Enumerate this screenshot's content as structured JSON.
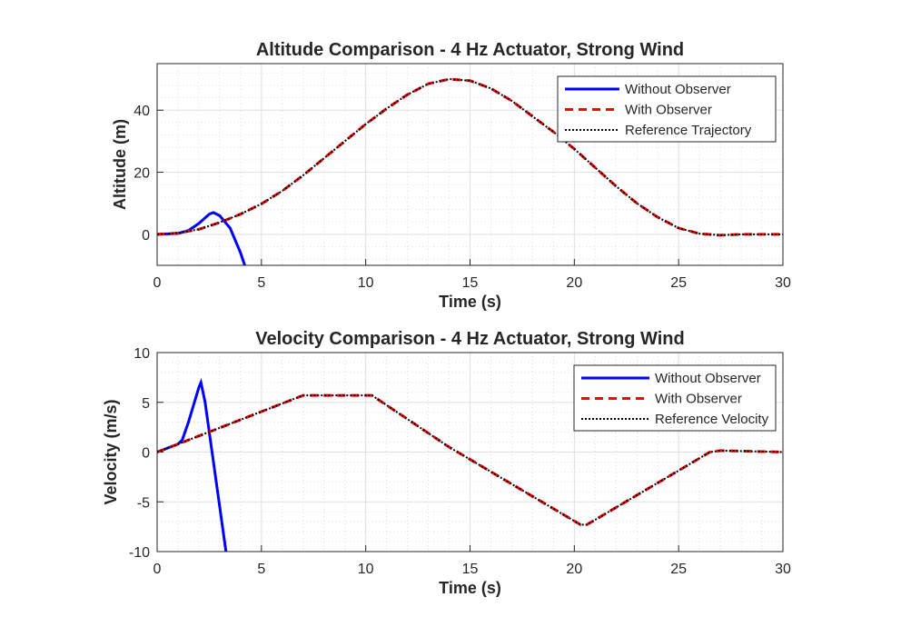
{
  "chart_data": [
    {
      "type": "line",
      "title": "Altitude Comparison - 4 Hz Actuator, Strong Wind",
      "xlabel": "Time (s)",
      "ylabel": "Altitude (m)",
      "xlim": [
        0,
        30
      ],
      "ylim": [
        -10,
        55
      ],
      "xticks": [
        0,
        5,
        10,
        15,
        20,
        25,
        30
      ],
      "yticks": [
        0,
        20,
        40
      ],
      "grid": true,
      "legend_placement": "top-right",
      "series": [
        {
          "name": "Without Observer",
          "color": "#0000ff",
          "style": "solid",
          "x": [
            0,
            1,
            1.5,
            2,
            2.5,
            2.7,
            3,
            3.5,
            4,
            4.2
          ],
          "y": [
            0,
            0.3,
            1.2,
            3.5,
            6.5,
            7,
            6,
            2,
            -6,
            -10
          ]
        },
        {
          "name": "With Observer",
          "color": "#ff0000",
          "style": "dashed",
          "x": [
            0,
            1,
            2,
            3,
            4,
            5,
            6,
            7,
            8,
            9,
            10,
            11,
            12,
            13,
            14,
            15,
            16,
            17,
            18,
            19,
            20,
            21,
            22,
            23,
            24,
            25,
            26,
            27,
            28,
            30
          ],
          "y": [
            0,
            0.4,
            1.6,
            3.8,
            6.5,
            9.8,
            14,
            19,
            24.5,
            30,
            35.5,
            40.5,
            45,
            48.5,
            50,
            49.5,
            47,
            43,
            38,
            33,
            27.5,
            21.5,
            15.5,
            10,
            5.5,
            2,
            0.2,
            -0.3,
            0,
            0
          ]
        },
        {
          "name": "Reference Trajectory",
          "color": "#000000",
          "style": "dotted",
          "x": [
            0,
            1,
            2,
            3,
            4,
            5,
            6,
            7,
            8,
            9,
            10,
            11,
            12,
            13,
            14,
            15,
            16,
            17,
            18,
            19,
            20,
            21,
            22,
            23,
            24,
            25,
            26,
            27,
            28,
            30
          ],
          "y": [
            0,
            0.4,
            1.6,
            3.8,
            6.5,
            9.8,
            14,
            19,
            24.5,
            30,
            35.5,
            40.5,
            45,
            48.5,
            50,
            49.5,
            47,
            43,
            38,
            33,
            27.5,
            21.5,
            15.5,
            10,
            5.5,
            2,
            0.2,
            -0.3,
            0,
            0
          ]
        }
      ]
    },
    {
      "type": "line",
      "title": "Velocity Comparison - 4 Hz Actuator, Strong Wind",
      "xlabel": "Time (s)",
      "ylabel": "Velocity (m/s)",
      "xlim": [
        0,
        30
      ],
      "ylim": [
        -10,
        10
      ],
      "xticks": [
        0,
        5,
        10,
        15,
        20,
        25,
        30
      ],
      "yticks": [
        -10,
        -5,
        0,
        5,
        10
      ],
      "grid": true,
      "legend_placement": "top-right",
      "series": [
        {
          "name": "Without Observer",
          "color": "#0000ff",
          "style": "solid",
          "x": [
            0,
            1,
            1.2,
            1.5,
            2,
            2.1,
            2.3,
            2.7,
            3,
            3.3
          ],
          "y": [
            0,
            0.8,
            1.2,
            3,
            6.5,
            7,
            5,
            -1,
            -5.5,
            -10
          ]
        },
        {
          "name": "With Observer",
          "color": "#ff0000",
          "style": "dashed",
          "x": [
            0,
            1,
            7,
            10.3,
            14,
            20.3,
            20.6,
            26.5,
            27,
            30
          ],
          "y": [
            0,
            0.8,
            5.7,
            5.7,
            0.5,
            -7.3,
            -7.3,
            0,
            0.15,
            0
          ]
        },
        {
          "name": "Reference Velocity",
          "color": "#000000",
          "style": "dotted",
          "x": [
            0,
            1,
            7,
            10.3,
            14,
            20.3,
            20.6,
            26.5,
            27,
            30
          ],
          "y": [
            0,
            0.8,
            5.7,
            5.7,
            0.5,
            -7.3,
            -7.3,
            0,
            0.15,
            0
          ]
        }
      ]
    }
  ]
}
